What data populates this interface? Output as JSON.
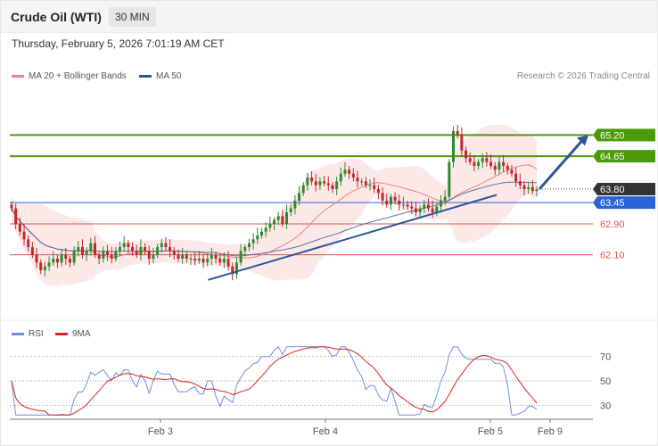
{
  "header": {
    "title": "Crude Oil (WTI)",
    "timeframe": "30 MIN"
  },
  "datetime": "Thursday, February 5, 2026 7:01:19 AM CET",
  "legend": {
    "ma20_label": "MA 20 + Bollinger Bands",
    "ma50_label": "MA 50",
    "ma20_color": "#f08080",
    "ma50_color": "#2b5797"
  },
  "credit": "Research © 2026 Trading Central",
  "rsi_legend": {
    "rsi_label": "RSI",
    "ma_label": "9MA",
    "rsi_color": "#6b8fe0",
    "ma_color": "#e02020"
  },
  "colors": {
    "up": "#2d8a2d",
    "down": "#c0282c",
    "resistance": "#4a9a0a",
    "support": "#2a62d8",
    "current": "#333333",
    "red_level": "#e05050",
    "trendline": "#2b5797"
  },
  "chart_data": {
    "type": "candlestick",
    "timeframe": "30 MIN",
    "x_ticks": [
      "Feb 3",
      "Feb 4",
      "Feb 5",
      "Feb 9"
    ],
    "price_levels": [
      {
        "label": "65.20",
        "value": 65.2,
        "kind": "resistance"
      },
      {
        "label": "64.65",
        "value": 64.65,
        "kind": "resistance"
      },
      {
        "label": "63.80",
        "value": 63.8,
        "kind": "current"
      },
      {
        "label": "63.45",
        "value": 63.45,
        "kind": "pivot"
      },
      {
        "label": "62.90",
        "value": 62.9,
        "kind": "support"
      },
      {
        "label": "62.10",
        "value": 62.1,
        "kind": "support"
      }
    ],
    "price_range": [
      60.5,
      66.5
    ],
    "trendline": {
      "from": {
        "x": 0.34,
        "y": 61.45
      },
      "to": {
        "x": 0.835,
        "y": 63.65
      }
    },
    "projection": {
      "from": 63.8,
      "to": 65.2
    },
    "candles_close": [
      63.3,
      62.9,
      62.7,
      62.5,
      62.3,
      62.1,
      61.9,
      61.7,
      61.8,
      61.9,
      62.0,
      61.9,
      62.1,
      62.0,
      61.9,
      62.2,
      62.3,
      62.1,
      62.2,
      62.4,
      62.1,
      62.0,
      62.2,
      62.1,
      62.0,
      62.2,
      62.3,
      62.4,
      62.3,
      62.2,
      62.1,
      62.3,
      62.2,
      62.0,
      62.1,
      62.3,
      62.4,
      62.3,
      62.2,
      62.1,
      62.0,
      62.1,
      62.0,
      62.0,
      61.95,
      62.0,
      61.9,
      62.0,
      62.1,
      62.0,
      61.9,
      62.0,
      61.8,
      61.6,
      61.9,
      62.2,
      62.3,
      62.4,
      62.5,
      62.6,
      62.7,
      62.8,
      62.9,
      63.0,
      63.1,
      62.9,
      63.2,
      63.3,
      63.5,
      63.7,
      63.9,
      64.1,
      64.0,
      63.9,
      64.0,
      63.95,
      63.9,
      63.8,
      64.0,
      64.2,
      64.3,
      64.2,
      64.1,
      64.0,
      64.0,
      63.9,
      63.9,
      63.8,
      63.7,
      63.5,
      63.4,
      63.6,
      63.5,
      63.4,
      63.4,
      63.35,
      63.3,
      63.2,
      63.3,
      63.4,
      63.3,
      63.2,
      63.35,
      63.5,
      63.6,
      64.5,
      65.3,
      65.2,
      64.8,
      64.6,
      64.5,
      64.4,
      64.5,
      64.6,
      64.5,
      64.4,
      64.3,
      64.5,
      64.4,
      64.3,
      64.2,
      64.0,
      63.9,
      63.8,
      63.85,
      63.75,
      63.8
    ],
    "rsi": {
      "levels": [
        70,
        50,
        30
      ],
      "range": [
        20,
        80
      ]
    }
  }
}
